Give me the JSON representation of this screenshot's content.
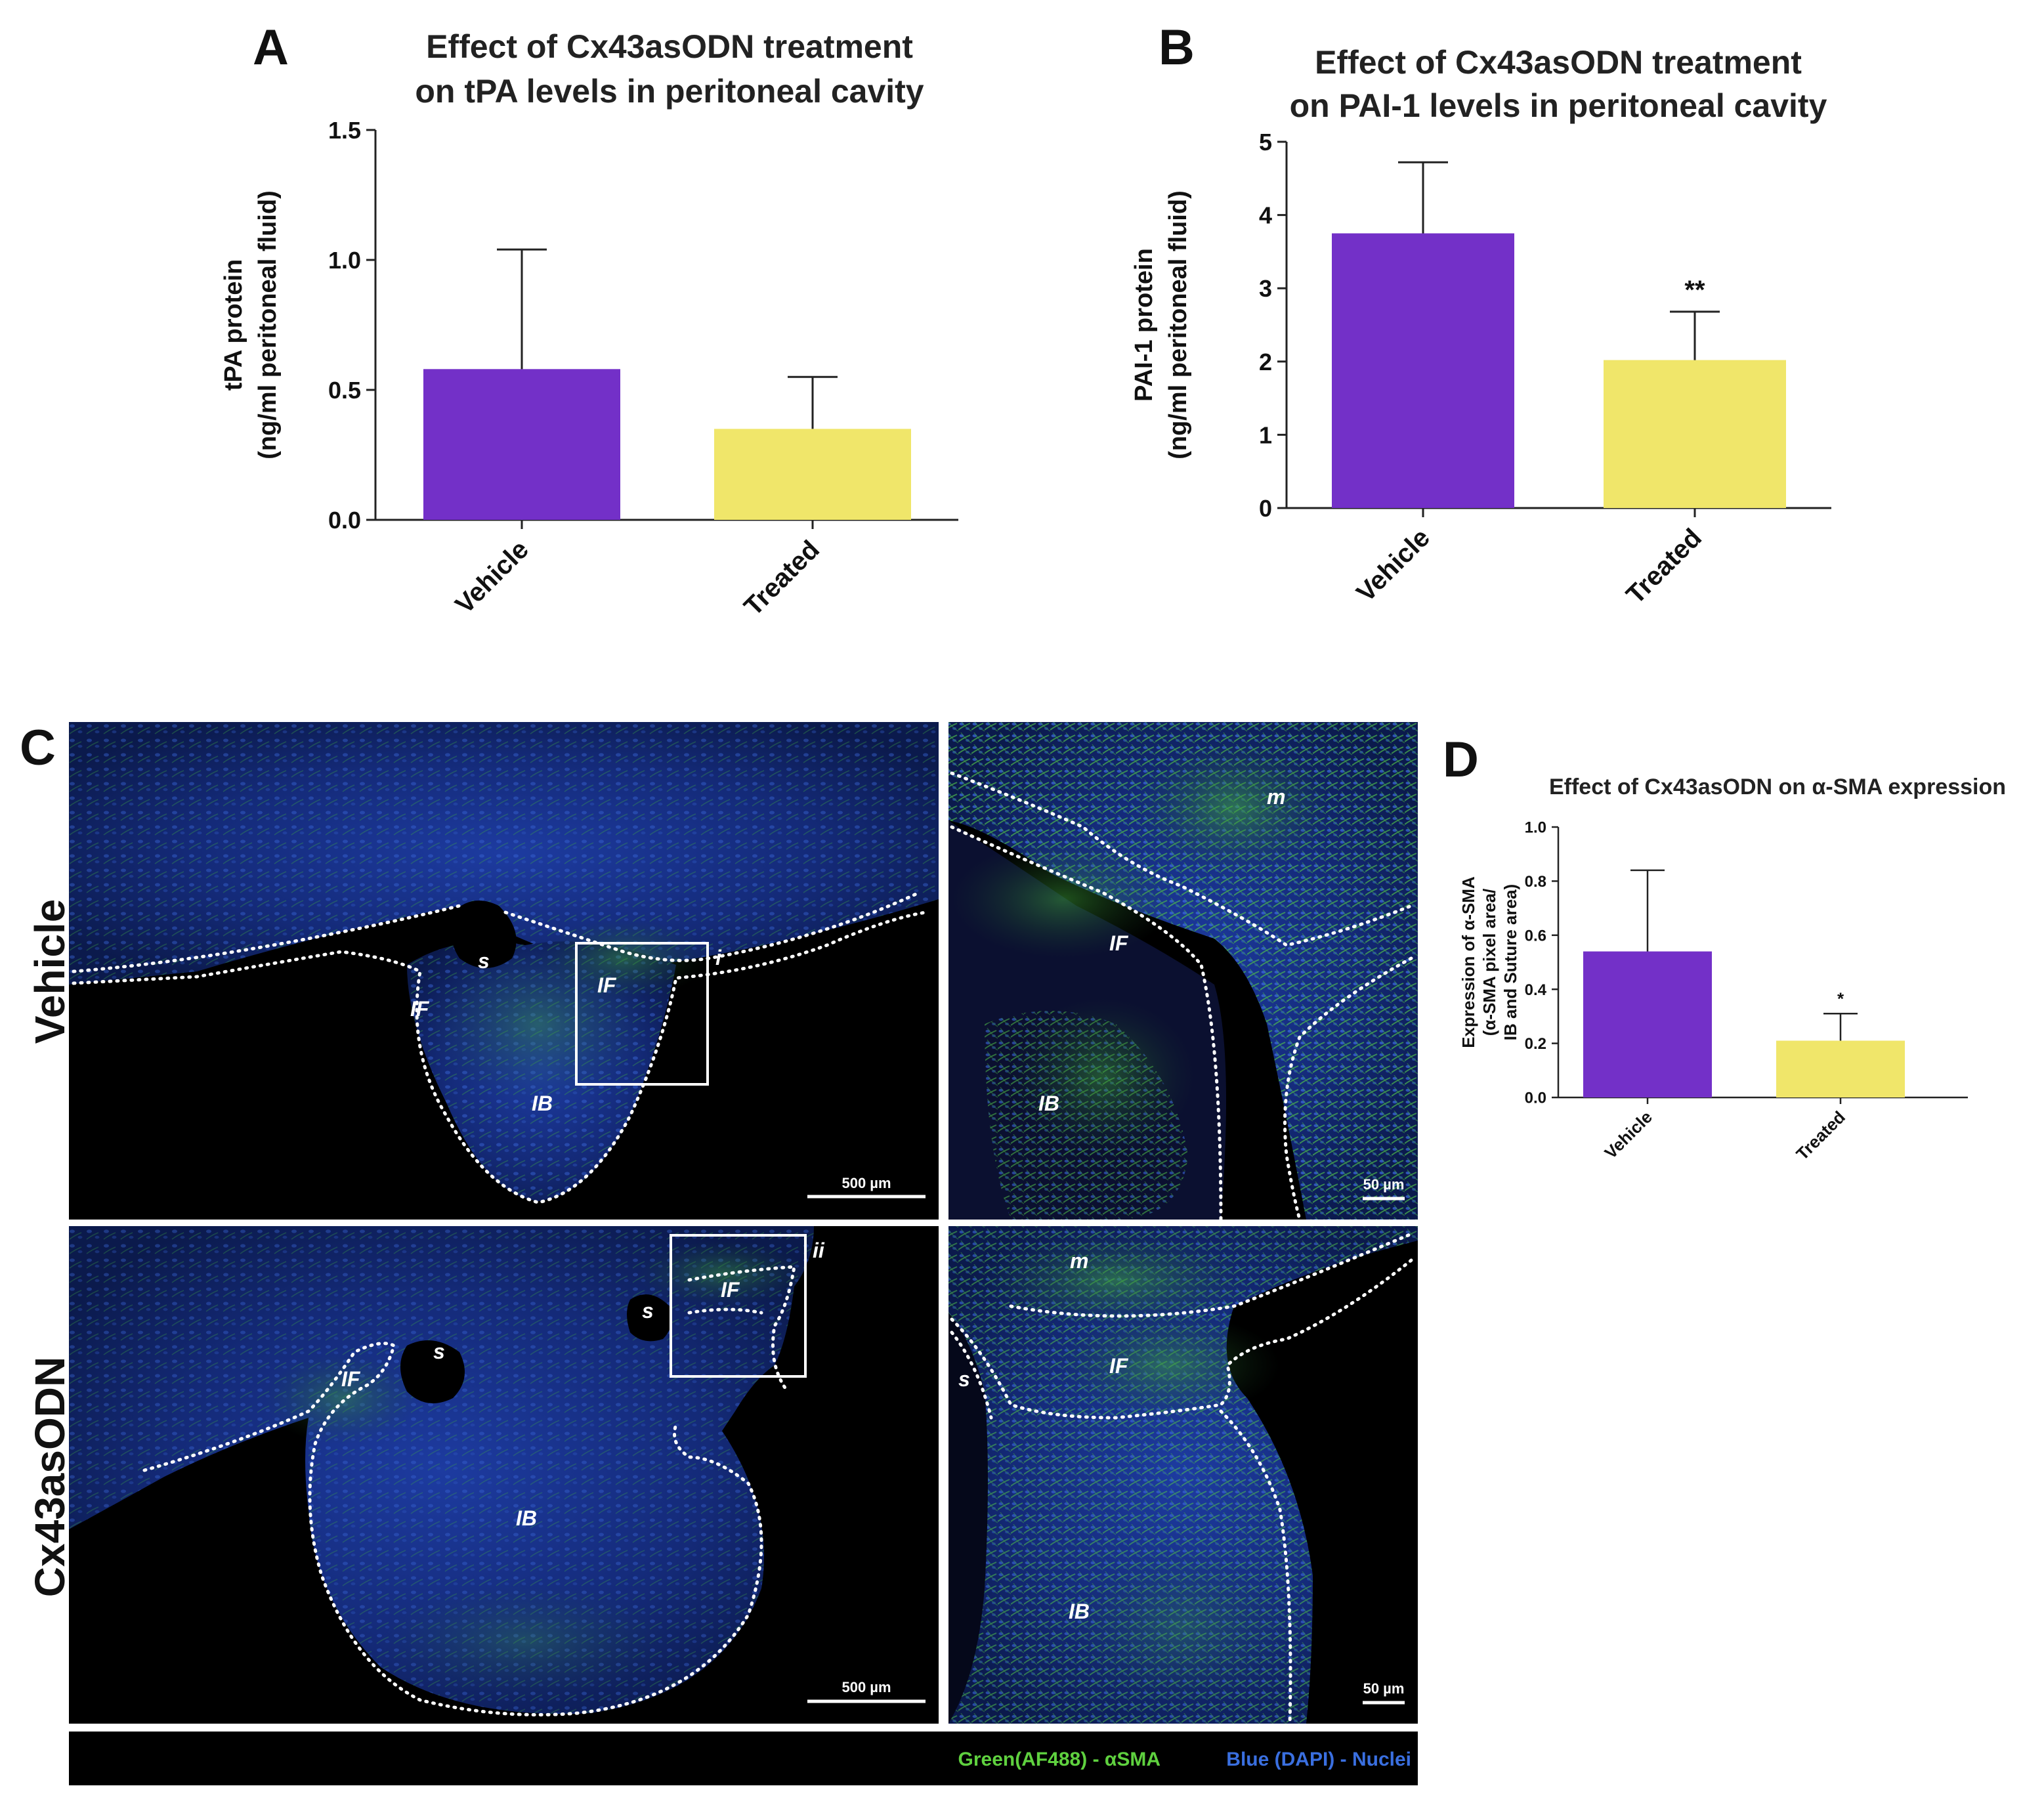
{
  "panels": {
    "A": "A",
    "B": "B",
    "C": "C",
    "D": "D"
  },
  "chart_data": [
    {
      "id": "A",
      "type": "bar",
      "title_lines": [
        "Effect of Cx43asODN treatment",
        "on tPA levels in peritoneal cavity"
      ],
      "ylabel_lines": [
        "tPA protein",
        "(ng/ml peritoneal fluid)"
      ],
      "categories": [
        "Vehicle",
        "Treated"
      ],
      "values": [
        0.58,
        0.35
      ],
      "errors_upper": [
        1.04,
        0.55
      ],
      "colors": [
        "#7330c8",
        "#f0e66a"
      ],
      "significance": [
        "",
        ""
      ],
      "ylim": [
        0,
        1.5
      ],
      "yticks": [
        0,
        0.5,
        1.0,
        1.5
      ],
      "ytick_labels": [
        "0.0",
        "0.5",
        "1.0",
        "1.5"
      ]
    },
    {
      "id": "B",
      "type": "bar",
      "title_lines": [
        "Effect of Cx43asODN treatment",
        "on PAI-1 levels in peritoneal cavity"
      ],
      "ylabel_lines": [
        "PAI-1 protein",
        "(ng/ml peritoneal fluid)"
      ],
      "categories": [
        "Vehicle",
        "Treated"
      ],
      "values": [
        3.75,
        2.02
      ],
      "errors_upper": [
        4.72,
        2.68
      ],
      "colors": [
        "#7330c8",
        "#f0e66a"
      ],
      "significance": [
        "",
        "**"
      ],
      "ylim": [
        0,
        5
      ],
      "yticks": [
        0,
        1,
        2,
        3,
        4,
        5
      ],
      "ytick_labels": [
        "0",
        "1",
        "2",
        "3",
        "4",
        "5"
      ]
    },
    {
      "id": "D",
      "type": "bar",
      "title_lines": [
        "Effect of Cx43asODN on α-SMA expression"
      ],
      "ylabel_lines": [
        "Expression of α-SMA",
        "(α-SMA pixel area/",
        "IB and Suture area)"
      ],
      "categories": [
        "Vehicle",
        "Treated"
      ],
      "values": [
        0.54,
        0.21
      ],
      "errors_upper": [
        0.84,
        0.31
      ],
      "colors": [
        "#7330c8",
        "#f0e66a"
      ],
      "significance": [
        "",
        "*"
      ],
      "ylim": [
        0,
        1.0
      ],
      "yticks": [
        0,
        0.2,
        0.4,
        0.6,
        0.8,
        1.0
      ],
      "ytick_labels": [
        "0.0",
        "0.2",
        "0.4",
        "0.6",
        "0.8",
        "1.0"
      ]
    }
  ],
  "micrographs": {
    "row_labels": [
      "Vehicle",
      "Cx43asODN"
    ],
    "inset_labels": [
      "i",
      "ii"
    ],
    "region_labels": {
      "IF": "IF",
      "IB": "IB",
      "s": "s",
      "m": "m"
    },
    "scale_bar_large": "500 µm",
    "scale_bar_small": "50 µm",
    "legend_green": "Green(AF488) - αSMA",
    "legend_blue": "Blue (DAPI) - Nuclei",
    "colors": {
      "green": "#5fd13f",
      "blue": "#3a6fe0",
      "background": "#000000"
    }
  }
}
